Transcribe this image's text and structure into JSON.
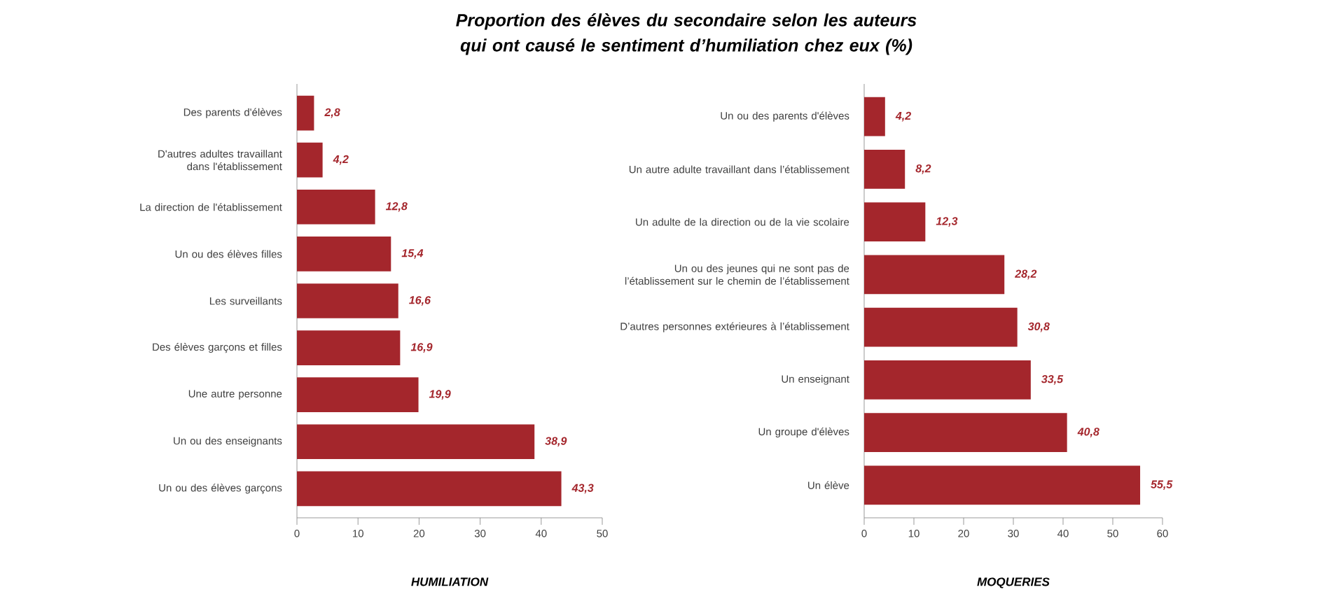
{
  "chart_data": [
    {
      "type": "bar",
      "orientation": "horizontal",
      "title": "Proportion des élèves du secondaire selon les auteurs qui ont causé le sentiment d’humiliation chez eux (%)",
      "xlabel": "HUMILIATION",
      "color": "#a4262c",
      "categories": [
        "Des parents d'élèves",
        "D'autres adultes travaillant dans l'établissement",
        "La direction de l'établissement",
        "Un ou des élèves filles",
        "Les surveillants",
        "Des élèves garçons et filles",
        "Une autre personne",
        "Un ou des enseignants",
        "Un ou des élèves garçons"
      ],
      "values": [
        2.8,
        4.2,
        12.8,
        15.4,
        16.6,
        16.9,
        19.9,
        38.9,
        43.3
      ],
      "value_labels": [
        "2,8",
        "4,2",
        "12,8",
        "15,4",
        "16,6",
        "16,9",
        "19,9",
        "38,9",
        "43,3"
      ],
      "xlim": [
        0,
        50
      ],
      "xticks": [
        0,
        10,
        20,
        30,
        40,
        50
      ]
    },
    {
      "type": "bar",
      "orientation": "horizontal",
      "xlabel": "MOQUERIES",
      "color": "#a4262c",
      "categories": [
        "Un ou des parents d'élèves",
        "Un autre adulte travaillant dans l’établissement",
        "Un adulte de la direction ou de la vie scolaire",
        "Un ou des jeunes qui ne sont pas de l’établissement sur le chemin de l’établissement",
        "D’autres personnes extérieures à l’établissement",
        "Un enseignant",
        "Un groupe d'élèves",
        "Un élève"
      ],
      "values": [
        4.2,
        8.2,
        12.3,
        28.2,
        30.8,
        33.5,
        40.8,
        55.5
      ],
      "value_labels": [
        "4,2",
        "8,2",
        "12,3",
        "28,2",
        "30,8",
        "33,5",
        "40,8",
        "55,5"
      ],
      "xlim": [
        0,
        60
      ],
      "xticks": [
        0,
        10,
        20,
        30,
        40,
        50,
        60
      ]
    }
  ]
}
